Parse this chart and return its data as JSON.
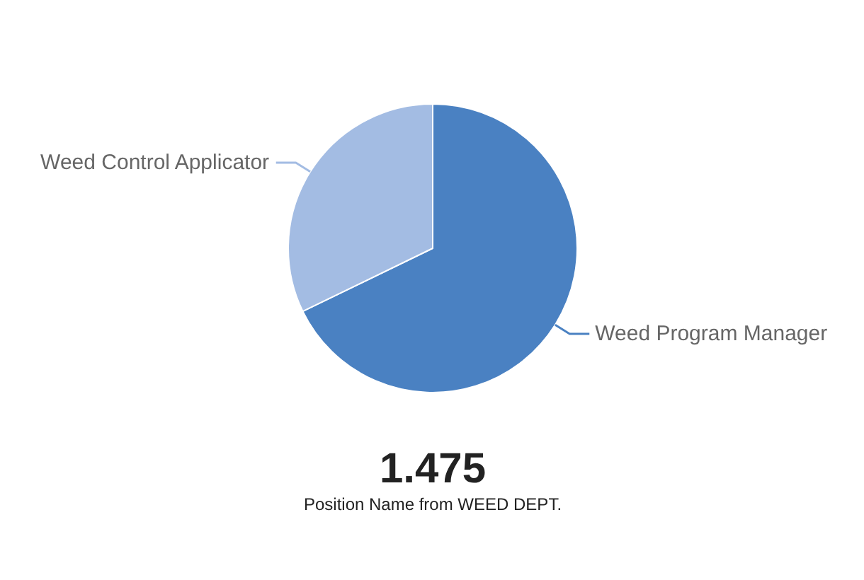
{
  "chart_data": {
    "type": "pie",
    "categories": [
      "Weed Program Manager",
      "Weed Control Applicator"
    ],
    "values": [
      67.8,
      32.2
    ],
    "colors": [
      "#4a81c2",
      "#a3bce3"
    ],
    "annotations": [
      "1.475",
      "Position Name from WEED DEPT."
    ]
  }
}
